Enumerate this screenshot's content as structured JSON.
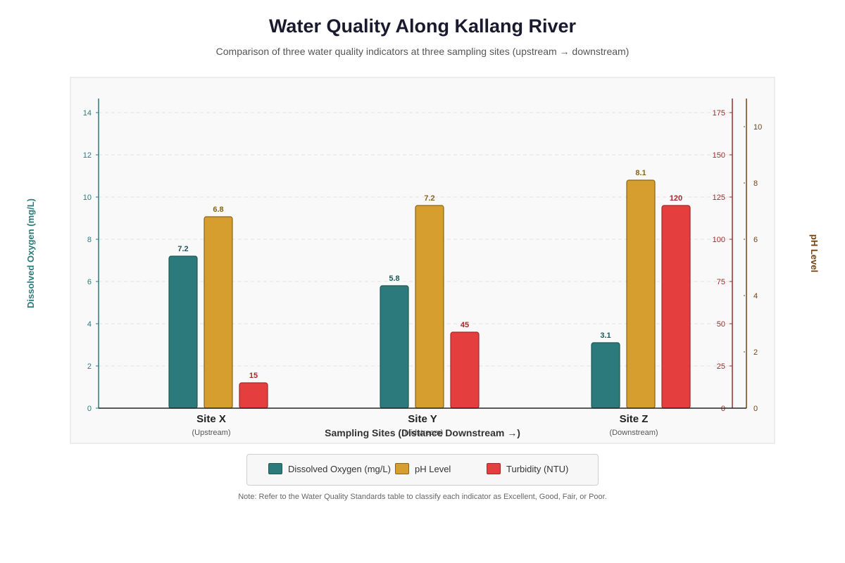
{
  "chart_data": {
    "type": "bar",
    "title": "Water Quality Along Kallang River",
    "subtitle": "Comparison of three water quality indicators at three sampling sites (upstream → downstream)",
    "xlabel": "Sampling Sites (Distance Downstream →)",
    "categories": [
      "Site X",
      "Site Y",
      "Site Z"
    ],
    "category_sublabels": [
      "(Upstream)",
      "(Midstream)",
      "(Downstream)"
    ],
    "series": [
      {
        "name": "Dissolved Oxygen (mg/L)",
        "values": [
          7.2,
          5.8,
          3.1
        ],
        "axis": "left",
        "color": "#2c7a7b",
        "stroke": "#1f5859"
      },
      {
        "name": "pH Level",
        "values": [
          6.8,
          7.2,
          8.1
        ],
        "axis": "right_outer",
        "color": "#d69e2e",
        "stroke": "#8a6418"
      },
      {
        "name": "Turbidity (NTU)",
        "values": [
          15,
          45,
          120
        ],
        "axis": "right_inner",
        "color": "#e53e3e",
        "stroke": "#a12a2a"
      }
    ],
    "axes": {
      "left": {
        "label": "Dissolved Oxygen (mg/L)",
        "ylim": [
          0,
          14.667
        ],
        "ticks": [
          0,
          2,
          4,
          6,
          8,
          10,
          12,
          14
        ],
        "color": "#2c7a7b"
      },
      "right_inner": {
        "label": "",
        "ylim": [
          0,
          183.33
        ],
        "ticks": [
          0,
          25,
          50,
          75,
          100,
          125,
          150,
          175
        ],
        "color": "#9b2c2c"
      },
      "right_outer": {
        "label": "pH Level",
        "ylim": [
          0,
          11
        ],
        "ticks": [
          0,
          2,
          4,
          6,
          8,
          10
        ],
        "color": "#744210"
      }
    },
    "grid": true,
    "legend_position": "bottom"
  },
  "note": "Note: Refer to the Water Quality Standards table to classify each indicator as Excellent, Good, Fair, or Poor."
}
